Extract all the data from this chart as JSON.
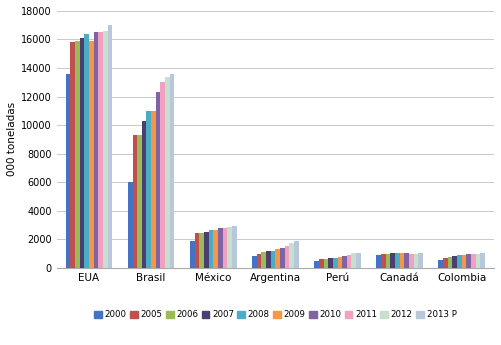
{
  "categories": [
    "EUA",
    "Brasil",
    "México",
    "Argentina",
    "Perú",
    "Canadá",
    "Colombia"
  ],
  "years": [
    "2000",
    "2005",
    "2006",
    "2007",
    "2008",
    "2009",
    "2010",
    "2011",
    "2012",
    "2013 P"
  ],
  "colors": [
    "#4472C4",
    "#C0504D",
    "#9BBB59",
    "#4B3F72",
    "#4BACC6",
    "#F79646",
    "#8064A2",
    "#F0A0C0",
    "#C6DFCE",
    "#B8C7D9"
  ],
  "values": {
    "2000": [
      13600,
      6000,
      1900,
      800,
      500,
      900,
      550
    ],
    "2005": [
      15800,
      9300,
      2450,
      950,
      600,
      950,
      700
    ],
    "2006": [
      15900,
      9300,
      2450,
      1100,
      620,
      970,
      720
    ],
    "2007": [
      16100,
      10300,
      2500,
      1200,
      680,
      1000,
      800
    ],
    "2008": [
      16400,
      11000,
      2650,
      1200,
      700,
      1000,
      900
    ],
    "2009": [
      15900,
      11000,
      2650,
      1300,
      750,
      1020,
      900
    ],
    "2010": [
      16500,
      12300,
      2750,
      1400,
      800,
      1000,
      950
    ],
    "2011": [
      16500,
      13000,
      2800,
      1550,
      900,
      980,
      980
    ],
    "2012": [
      16600,
      13400,
      2850,
      1700,
      1000,
      980,
      980
    ],
    "2013 P": [
      17000,
      13600,
      2900,
      1900,
      1050,
      1000,
      1000
    ]
  },
  "ylabel": "000 toneladas",
  "ylim": [
    0,
    18000
  ],
  "yticks": [
    0,
    2000,
    4000,
    6000,
    8000,
    10000,
    12000,
    14000,
    16000,
    18000
  ],
  "bg_color": "#FFFFFF",
  "grid_color": "#C0C0C0"
}
